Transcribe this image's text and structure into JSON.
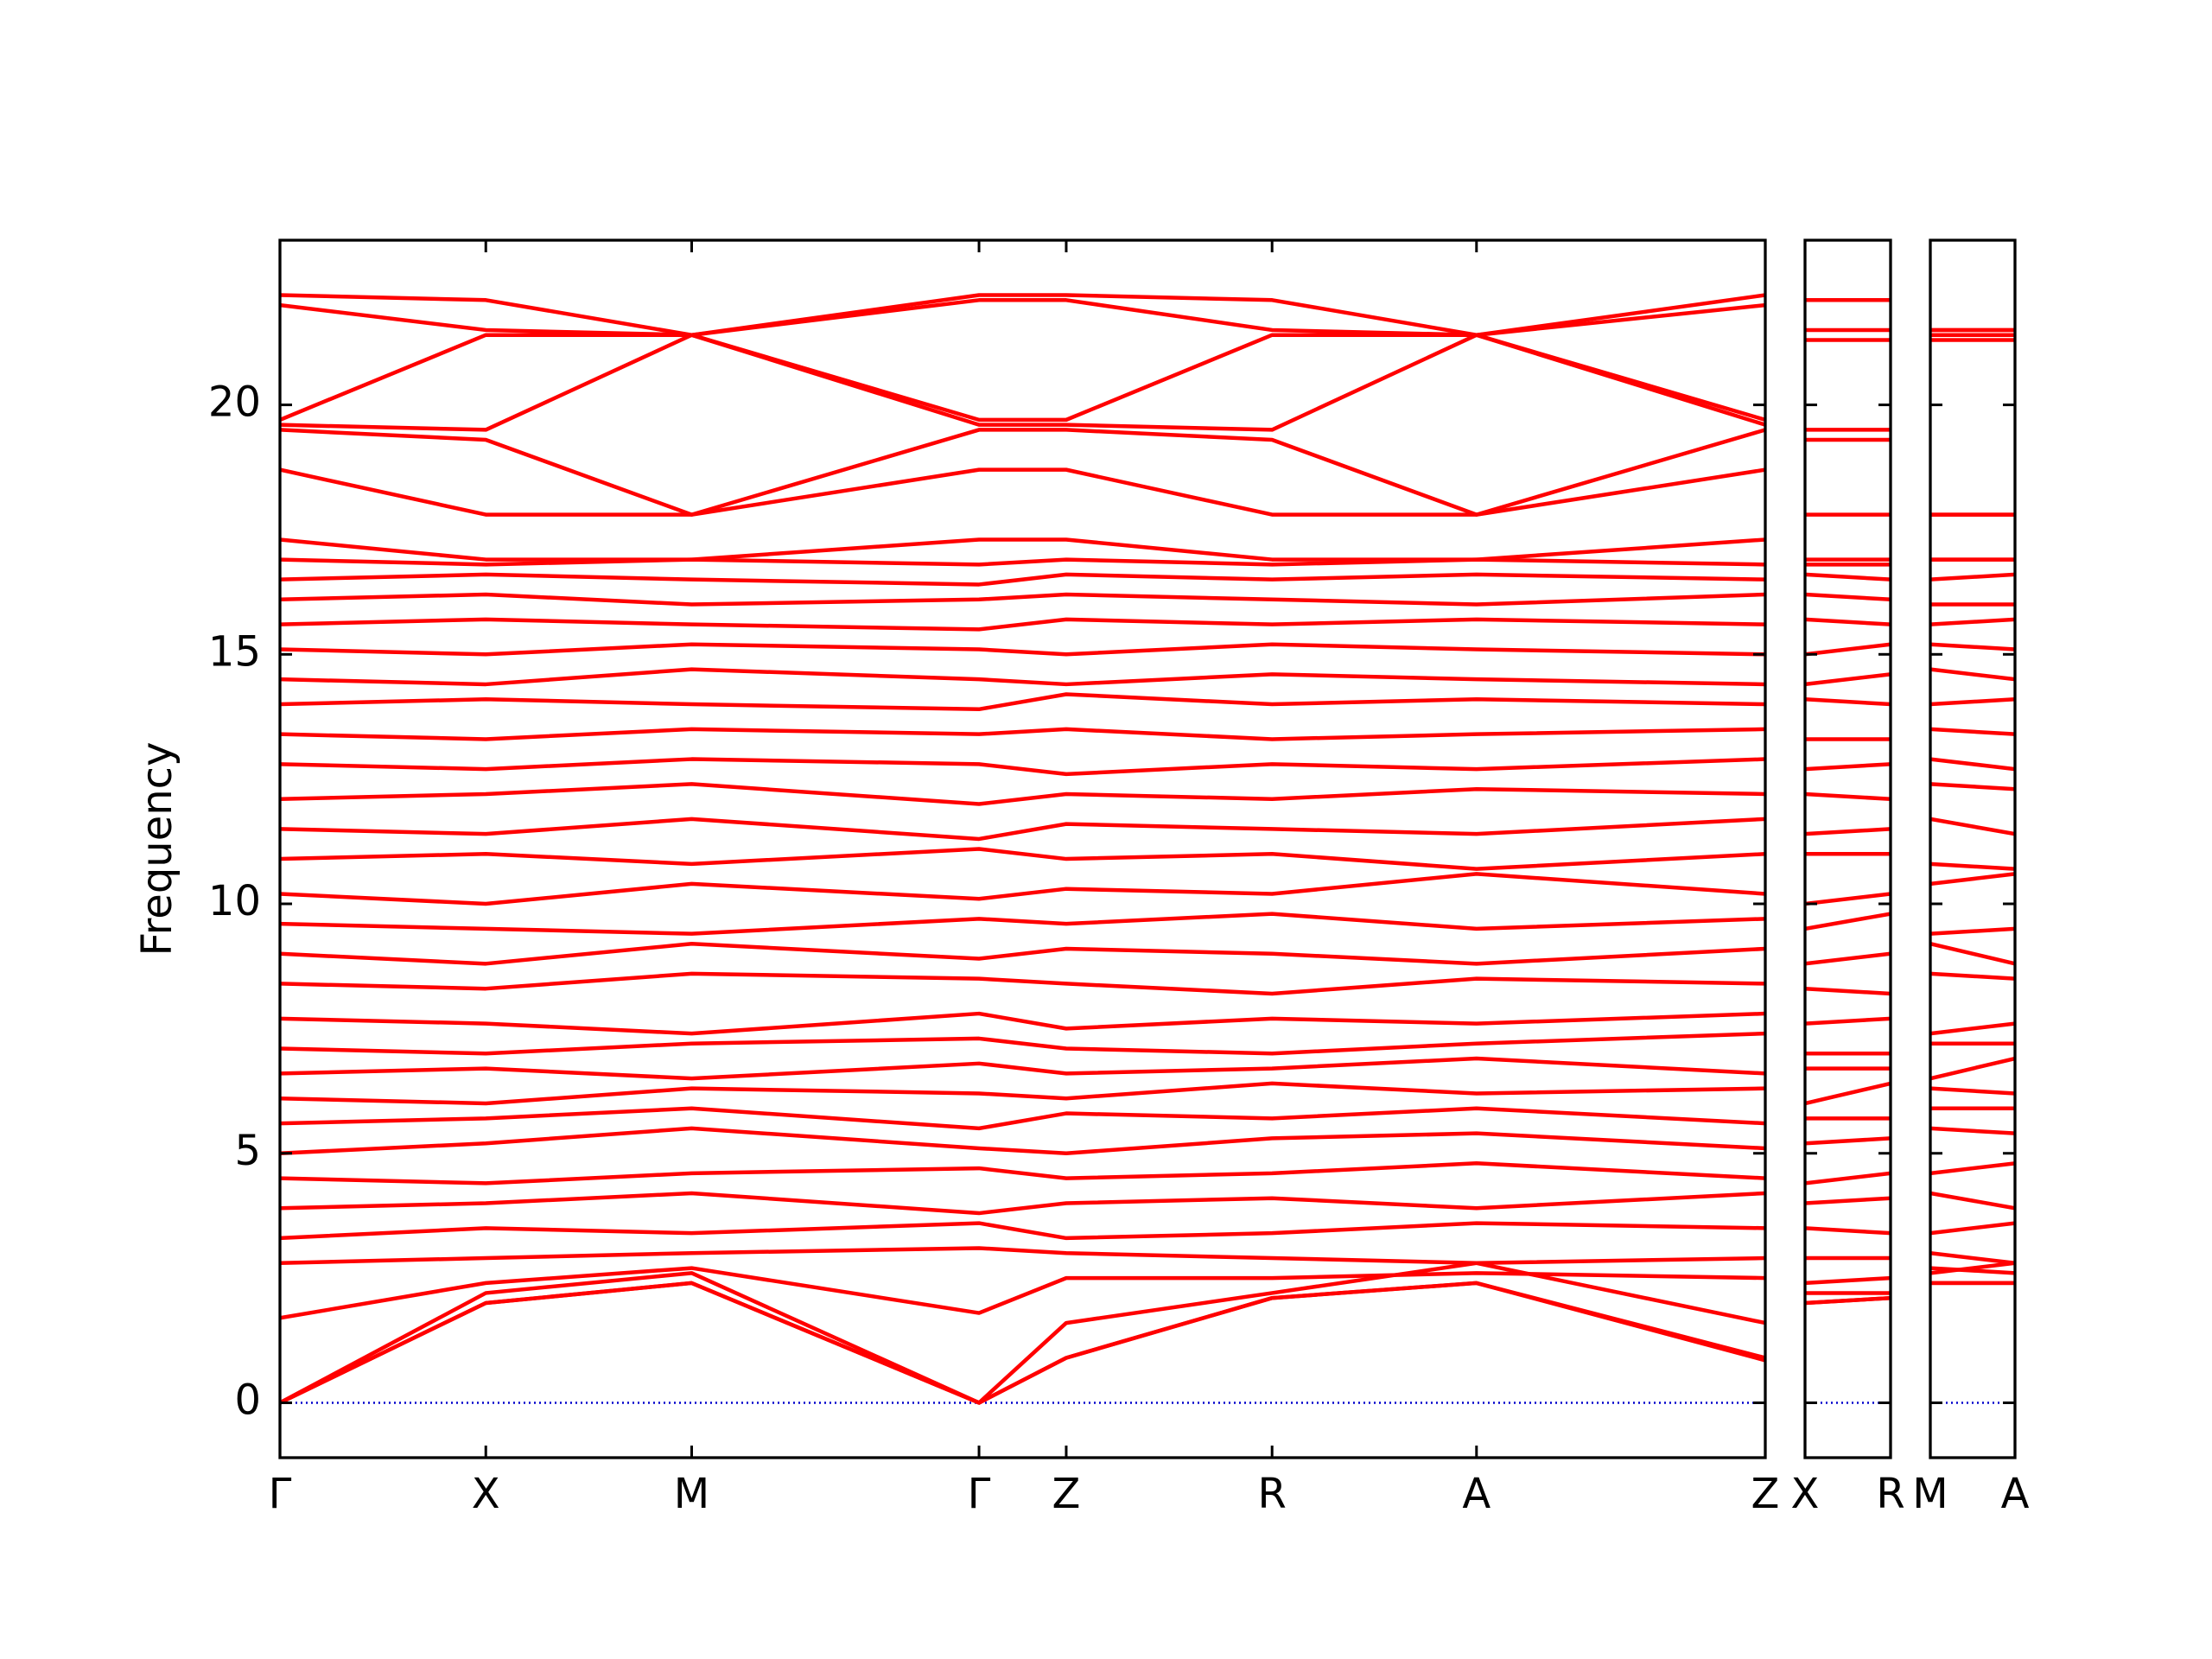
{
  "chart_data": [
    {
      "type": "line",
      "ylabel": "Frequency",
      "color": "#ff0000",
      "ytick_labels": true,
      "hline": {
        "value": 0,
        "color": "#0000cc"
      },
      "x": [
        0,
        1.44,
        2.88,
        4.89,
        5.5,
        6.94,
        8.37,
        10.39
      ],
      "xlim": [
        0,
        10.39
      ],
      "xticks": [
        {
          "value": 0,
          "label": "Γ"
        },
        {
          "value": 1.44,
          "label": "X"
        },
        {
          "value": 2.88,
          "label": "M"
        },
        {
          "value": 4.89,
          "label": "Γ"
        },
        {
          "value": 5.5,
          "label": "Z"
        },
        {
          "value": 6.94,
          "label": "R"
        },
        {
          "value": 8.37,
          "label": "A"
        },
        {
          "value": 10.39,
          "label": "Z"
        }
      ],
      "ylim": [
        -1.1,
        23.3
      ],
      "yticks": [
        0,
        5,
        10,
        15,
        20
      ],
      "series": [
        {
          "values": [
            0,
            2.0,
            2.4,
            0,
            0.9,
            2.1,
            2.4,
            0.9
          ]
        },
        {
          "values": [
            0,
            2.0,
            2.4,
            0,
            0.9,
            2.1,
            2.4,
            0.85
          ]
        },
        {
          "values": [
            0,
            2.2,
            2.6,
            0,
            1.6,
            2.2,
            2.8,
            1.6
          ]
        },
        {
          "values": [
            1.7,
            2.4,
            2.7,
            1.8,
            2.5,
            2.5,
            2.6,
            2.5
          ]
        },
        {
          "values": [
            2.8,
            2.9,
            3.0,
            3.1,
            3.0,
            2.9,
            2.8,
            2.9
          ]
        },
        {
          "values": [
            3.3,
            3.5,
            3.4,
            3.6,
            3.3,
            3.4,
            3.6,
            3.5
          ]
        },
        {
          "values": [
            3.9,
            4.0,
            4.2,
            3.8,
            4.0,
            4.1,
            3.9,
            4.2
          ]
        },
        {
          "values": [
            4.5,
            4.4,
            4.6,
            4.7,
            4.5,
            4.6,
            4.8,
            4.5
          ]
        },
        {
          "values": [
            5.0,
            5.2,
            5.5,
            5.1,
            5.0,
            5.3,
            5.4,
            5.1
          ]
        },
        {
          "values": [
            5.6,
            5.7,
            5.9,
            5.5,
            5.8,
            5.7,
            5.9,
            5.6
          ]
        },
        {
          "values": [
            6.1,
            6.0,
            6.3,
            6.2,
            6.1,
            6.4,
            6.2,
            6.3
          ]
        },
        {
          "values": [
            6.6,
            6.7,
            6.5,
            6.8,
            6.6,
            6.7,
            6.9,
            6.6
          ]
        },
        {
          "values": [
            7.1,
            7.0,
            7.2,
            7.3,
            7.1,
            7.0,
            7.2,
            7.4
          ]
        },
        {
          "values": [
            7.7,
            7.6,
            7.4,
            7.8,
            7.5,
            7.7,
            7.6,
            7.8
          ]
        },
        {
          "values": [
            8.4,
            8.3,
            8.6,
            8.5,
            8.4,
            8.2,
            8.5,
            8.4
          ]
        },
        {
          "values": [
            9.0,
            8.8,
            9.2,
            8.9,
            9.1,
            9.0,
            8.8,
            9.1
          ]
        },
        {
          "values": [
            9.6,
            9.5,
            9.4,
            9.7,
            9.6,
            9.8,
            9.5,
            9.7
          ]
        },
        {
          "values": [
            10.2,
            10.0,
            10.4,
            10.1,
            10.3,
            10.2,
            10.6,
            10.2
          ]
        },
        {
          "values": [
            10.9,
            11.0,
            10.8,
            11.1,
            10.9,
            11.0,
            10.7,
            11.0
          ]
        },
        {
          "values": [
            11.5,
            11.4,
            11.7,
            11.3,
            11.6,
            11.5,
            11.4,
            11.7
          ]
        },
        {
          "values": [
            12.1,
            12.2,
            12.4,
            12.0,
            12.2,
            12.1,
            12.3,
            12.2
          ]
        },
        {
          "values": [
            12.8,
            12.7,
            12.9,
            12.8,
            12.6,
            12.8,
            12.7,
            12.9
          ]
        },
        {
          "values": [
            13.4,
            13.3,
            13.5,
            13.4,
            13.5,
            13.3,
            13.4,
            13.5
          ]
        },
        {
          "values": [
            14.0,
            14.1,
            14.0,
            13.9,
            14.2,
            14.0,
            14.1,
            14.0
          ]
        },
        {
          "values": [
            14.5,
            14.4,
            14.7,
            14.5,
            14.4,
            14.6,
            14.5,
            14.4
          ]
        },
        {
          "values": [
            15.1,
            15.0,
            15.2,
            15.1,
            15.0,
            15.2,
            15.1,
            15.0
          ]
        },
        {
          "values": [
            15.6,
            15.7,
            15.6,
            15.5,
            15.7,
            15.6,
            15.7,
            15.6
          ]
        },
        {
          "values": [
            16.1,
            16.2,
            16.0,
            16.1,
            16.2,
            16.1,
            16.0,
            16.2
          ]
        },
        {
          "values": [
            16.5,
            16.6,
            16.5,
            16.4,
            16.6,
            16.5,
            16.6,
            16.5
          ]
        },
        {
          "values": [
            16.9,
            16.8,
            16.9,
            16.8,
            16.9,
            16.8,
            16.9,
            16.8
          ]
        },
        {
          "values": [
            17.3,
            16.9,
            16.9,
            17.3,
            17.3,
            16.9,
            16.9,
            17.3
          ]
        },
        {
          "values": [
            18.7,
            17.8,
            17.8,
            18.7,
            18.7,
            17.8,
            17.8,
            18.7
          ]
        },
        {
          "values": [
            19.5,
            19.3,
            17.8,
            19.5,
            19.5,
            19.3,
            17.8,
            19.5
          ]
        },
        {
          "values": [
            19.6,
            19.5,
            21.4,
            19.6,
            19.6,
            19.5,
            21.4,
            19.6
          ]
        },
        {
          "values": [
            19.7,
            21.4,
            21.4,
            19.7,
            19.7,
            21.4,
            21.4,
            19.7
          ]
        },
        {
          "values": [
            22.0,
            21.5,
            21.4,
            22.1,
            22.1,
            21.5,
            21.4,
            22.0
          ]
        },
        {
          "values": [
            22.2,
            22.1,
            21.4,
            22.2,
            22.2,
            22.1,
            21.4,
            22.2
          ]
        }
      ]
    },
    {
      "type": "line",
      "color": "#ff0000",
      "ytick_labels": false,
      "hline": {
        "value": 0,
        "color": "#0000cc"
      },
      "x": [
        0,
        0.6
      ],
      "xlim": [
        0,
        0.6
      ],
      "xticks": [
        {
          "value": 0,
          "label": "X"
        },
        {
          "value": 0.6,
          "label": "R"
        }
      ],
      "ylim": [
        -1.1,
        23.3
      ],
      "yticks": [
        0,
        5,
        10,
        15,
        20
      ],
      "series": [
        {
          "values": [
            2.0,
            2.1
          ]
        },
        {
          "values": [
            2.0,
            2.1
          ]
        },
        {
          "values": [
            2.2,
            2.2
          ]
        },
        {
          "values": [
            2.4,
            2.5
          ]
        },
        {
          "values": [
            2.9,
            2.9
          ]
        },
        {
          "values": [
            3.5,
            3.4
          ]
        },
        {
          "values": [
            4.0,
            4.1
          ]
        },
        {
          "values": [
            4.4,
            4.6
          ]
        },
        {
          "values": [
            5.2,
            5.3
          ]
        },
        {
          "values": [
            5.7,
            5.7
          ]
        },
        {
          "values": [
            6.0,
            6.4
          ]
        },
        {
          "values": [
            6.7,
            6.7
          ]
        },
        {
          "values": [
            7.0,
            7.0
          ]
        },
        {
          "values": [
            7.6,
            7.7
          ]
        },
        {
          "values": [
            8.3,
            8.2
          ]
        },
        {
          "values": [
            8.8,
            9.0
          ]
        },
        {
          "values": [
            9.5,
            9.8
          ]
        },
        {
          "values": [
            10.0,
            10.2
          ]
        },
        {
          "values": [
            11.0,
            11.0
          ]
        },
        {
          "values": [
            11.4,
            11.5
          ]
        },
        {
          "values": [
            12.2,
            12.1
          ]
        },
        {
          "values": [
            12.7,
            12.8
          ]
        },
        {
          "values": [
            13.3,
            13.3
          ]
        },
        {
          "values": [
            14.1,
            14.0
          ]
        },
        {
          "values": [
            14.4,
            14.6
          ]
        },
        {
          "values": [
            15.0,
            15.2
          ]
        },
        {
          "values": [
            15.7,
            15.6
          ]
        },
        {
          "values": [
            16.2,
            16.1
          ]
        },
        {
          "values": [
            16.6,
            16.5
          ]
        },
        {
          "values": [
            16.8,
            16.8
          ]
        },
        {
          "values": [
            16.9,
            16.9
          ]
        },
        {
          "values": [
            17.8,
            17.8
          ]
        },
        {
          "values": [
            19.3,
            19.3
          ]
        },
        {
          "values": [
            19.5,
            19.5
          ]
        },
        {
          "values": [
            21.3,
            21.3
          ]
        },
        {
          "values": [
            21.5,
            21.5
          ]
        },
        {
          "values": [
            22.1,
            22.1
          ]
        }
      ]
    },
    {
      "type": "line",
      "color": "#ff0000",
      "ytick_labels": false,
      "hline": {
        "value": 0,
        "color": "#0000cc"
      },
      "x": [
        0,
        0.59
      ],
      "xlim": [
        0,
        0.59
      ],
      "xticks": [
        {
          "value": 0,
          "label": "M"
        },
        {
          "value": 0.59,
          "label": "A"
        }
      ],
      "ylim": [
        -1.1,
        23.3
      ],
      "yticks": [
        0,
        5,
        10,
        15,
        20
      ],
      "series": [
        {
          "values": [
            2.4,
            2.4
          ]
        },
        {
          "values": [
            2.4,
            2.4
          ]
        },
        {
          "values": [
            2.6,
            2.8
          ]
        },
        {
          "values": [
            2.7,
            2.6
          ]
        },
        {
          "values": [
            3.0,
            2.8
          ]
        },
        {
          "values": [
            3.4,
            3.6
          ]
        },
        {
          "values": [
            4.2,
            3.9
          ]
        },
        {
          "values": [
            4.6,
            4.8
          ]
        },
        {
          "values": [
            5.5,
            5.4
          ]
        },
        {
          "values": [
            5.9,
            5.9
          ]
        },
        {
          "values": [
            6.3,
            6.2
          ]
        },
        {
          "values": [
            6.5,
            6.9
          ]
        },
        {
          "values": [
            7.2,
            7.2
          ]
        },
        {
          "values": [
            7.4,
            7.6
          ]
        },
        {
          "values": [
            8.6,
            8.5
          ]
        },
        {
          "values": [
            9.2,
            8.8
          ]
        },
        {
          "values": [
            9.4,
            9.5
          ]
        },
        {
          "values": [
            10.4,
            10.6
          ]
        },
        {
          "values": [
            10.8,
            10.7
          ]
        },
        {
          "values": [
            11.7,
            11.4
          ]
        },
        {
          "values": [
            12.4,
            12.3
          ]
        },
        {
          "values": [
            12.9,
            12.7
          ]
        },
        {
          "values": [
            13.5,
            13.4
          ]
        },
        {
          "values": [
            14.0,
            14.1
          ]
        },
        {
          "values": [
            14.7,
            14.5
          ]
        },
        {
          "values": [
            15.2,
            15.1
          ]
        },
        {
          "values": [
            15.6,
            15.7
          ]
        },
        {
          "values": [
            16.0,
            16.0
          ]
        },
        {
          "values": [
            16.5,
            16.6
          ]
        },
        {
          "values": [
            16.9,
            16.9
          ]
        },
        {
          "values": [
            16.9,
            16.9
          ]
        },
        {
          "values": [
            17.8,
            17.8
          ]
        },
        {
          "values": [
            17.8,
            17.8
          ]
        },
        {
          "values": [
            21.3,
            21.3
          ]
        },
        {
          "values": [
            21.4,
            21.4
          ]
        },
        {
          "values": [
            21.5,
            21.5
          ]
        },
        {
          "values": [
            21.5,
            21.5
          ]
        }
      ]
    }
  ]
}
